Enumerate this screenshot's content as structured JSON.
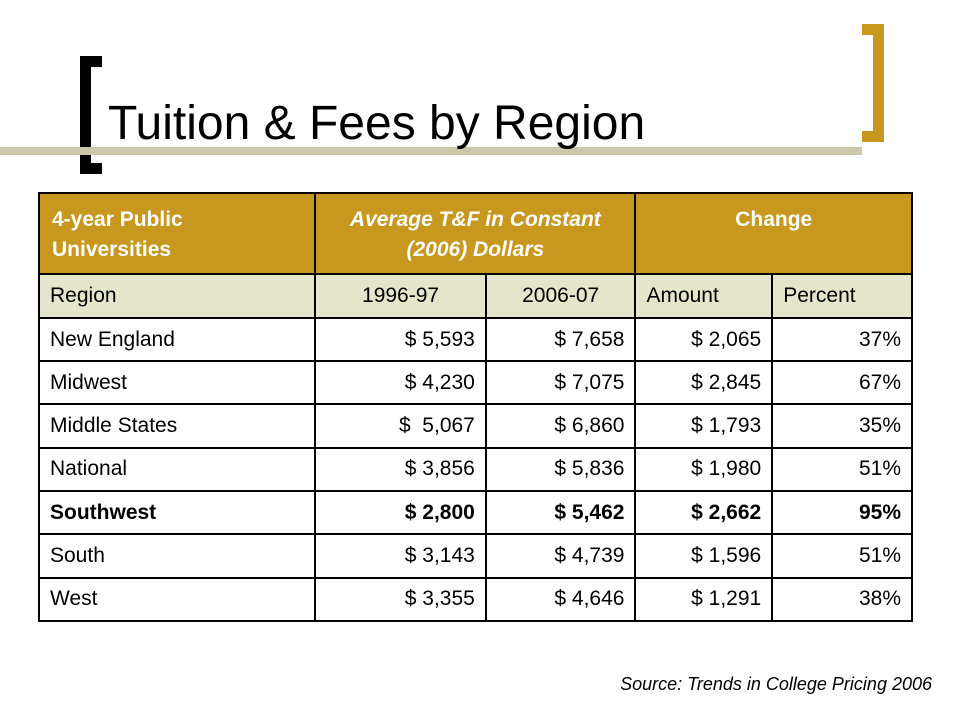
{
  "title": "Tuition & Fees by Region",
  "colors": {
    "accent": "#c8971d",
    "subheader": "#e5e5cc",
    "rule": "#c9c8a8"
  },
  "table": {
    "header": {
      "col1": "4-year Public Universities",
      "col2": "Average T&F in Constant (2006) Dollars",
      "col3": "Change"
    },
    "subheader": [
      "Region",
      "1996-97",
      "2006-07",
      "Amount",
      "Percent"
    ],
    "rows": [
      {
        "cells": [
          "New England",
          "$ 5,593",
          "$ 7,658",
          "$ 2,065",
          "37%"
        ]
      },
      {
        "cells": [
          "Midwest",
          "$ 4,230",
          "$ 7,075",
          "$ 2,845",
          "67%"
        ]
      },
      {
        "cells": [
          "Middle States",
          "$  5,067",
          "$ 6,860",
          "$ 1,793",
          "35%"
        ]
      },
      {
        "cells": [
          "National",
          "$ 3,856",
          "$ 5,836",
          "$ 1,980",
          "51%"
        ]
      },
      {
        "cells": [
          "Southwest",
          "$ 2,800",
          "$ 5,462",
          "$ 2,662",
          "95%"
        ]
      },
      {
        "cells": [
          "South",
          "$ 3,143",
          "$ 4,739",
          "$ 1,596",
          "51%"
        ]
      },
      {
        "cells": [
          "West",
          "$ 3,355",
          "$ 4,646",
          "$ 1,291",
          "38%"
        ]
      }
    ]
  },
  "source": "Source: Trends in College Pricing 2006"
}
